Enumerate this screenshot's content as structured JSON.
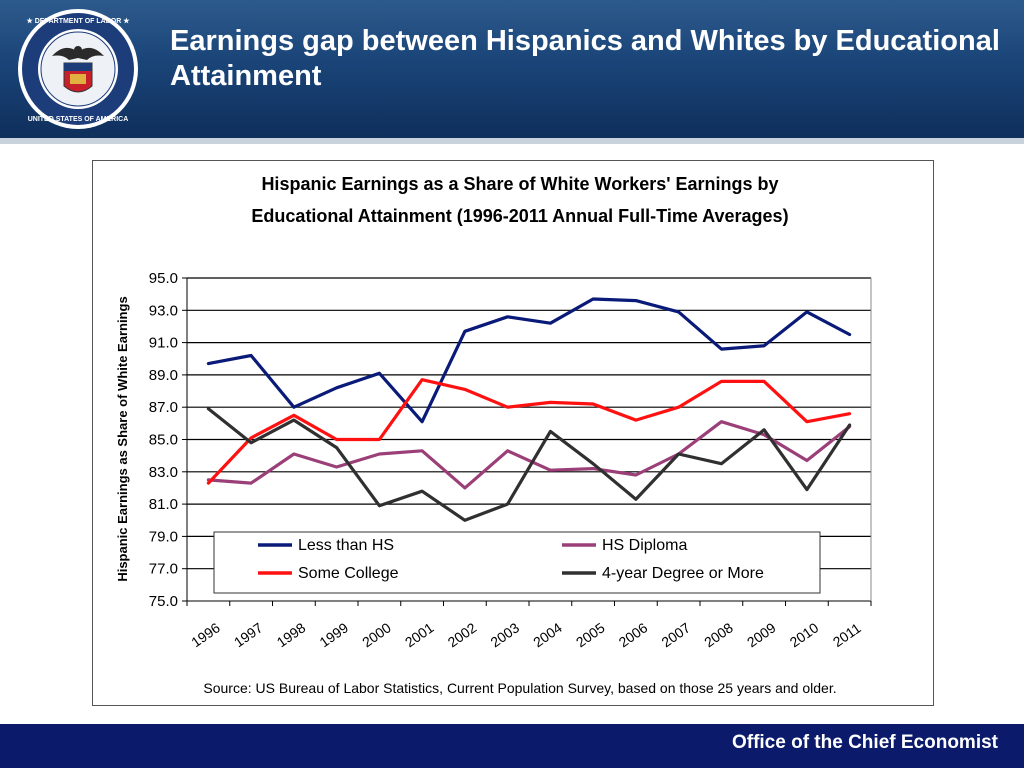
{
  "slide": {
    "title": "Earnings gap between Hispanics and Whites by Educational Attainment",
    "footer": "Office of the Chief Economist",
    "seal_text": "DEPARTMENT OF LABOR · UNITED STATES OF AMERICA"
  },
  "colors": {
    "header": "#1a4478",
    "footer": "#0b1a6a",
    "less_than_hs": "#0a1a78",
    "hs_diploma": "#9b3f78",
    "some_college": "#ff1111",
    "four_year": "#303030"
  },
  "chart_data": {
    "type": "line",
    "title_lines": [
      "Hispanic Earnings as a Share of White Workers' Earnings by",
      "Educational Attainment (1996-2011 Annual Full-Time Averages)"
    ],
    "ylabel": "Hispanic Earnings as Share of White Earnings",
    "xlabel": "",
    "source": "Source: US Bureau of Labor Statistics, Current Population Survey, based on those 25 years and older.",
    "ylim": [
      75.0,
      95.0
    ],
    "yticks": [
      "75.0",
      "77.0",
      "79.0",
      "81.0",
      "83.0",
      "85.0",
      "87.0",
      "89.0",
      "91.0",
      "93.0",
      "95.0"
    ],
    "categories": [
      "1996",
      "1997",
      "1998",
      "1999",
      "2000",
      "2001",
      "2002",
      "2003",
      "2004",
      "2005",
      "2006",
      "2007",
      "2008",
      "2009",
      "2010",
      "2011"
    ],
    "grid": true,
    "legend_position": "bottom-inside",
    "series": [
      {
        "name": "Less than HS",
        "color": "#0a1a78",
        "values": [
          89.7,
          90.2,
          87.0,
          88.2,
          89.1,
          86.1,
          91.7,
          92.6,
          92.2,
          93.7,
          93.6,
          92.9,
          90.6,
          90.8,
          92.9,
          91.5
        ]
      },
      {
        "name": "HS Diploma",
        "color": "#9b3f78",
        "values": [
          82.5,
          82.3,
          84.1,
          83.3,
          84.1,
          84.3,
          82.0,
          84.3,
          83.1,
          83.2,
          82.8,
          84.1,
          86.1,
          85.3,
          83.7,
          85.8
        ]
      },
      {
        "name": "Some College",
        "color": "#ff1111",
        "values": [
          82.3,
          85.1,
          86.5,
          85.0,
          85.0,
          88.7,
          88.1,
          87.0,
          87.3,
          87.2,
          86.2,
          87.0,
          88.6,
          88.6,
          86.1,
          86.6
        ]
      },
      {
        "name": "4-year Degree or More",
        "color": "#303030",
        "values": [
          86.9,
          84.8,
          86.2,
          84.5,
          80.9,
          81.8,
          80.0,
          81.0,
          85.5,
          83.5,
          81.3,
          84.1,
          83.5,
          85.6,
          81.9,
          85.9
        ]
      }
    ]
  }
}
